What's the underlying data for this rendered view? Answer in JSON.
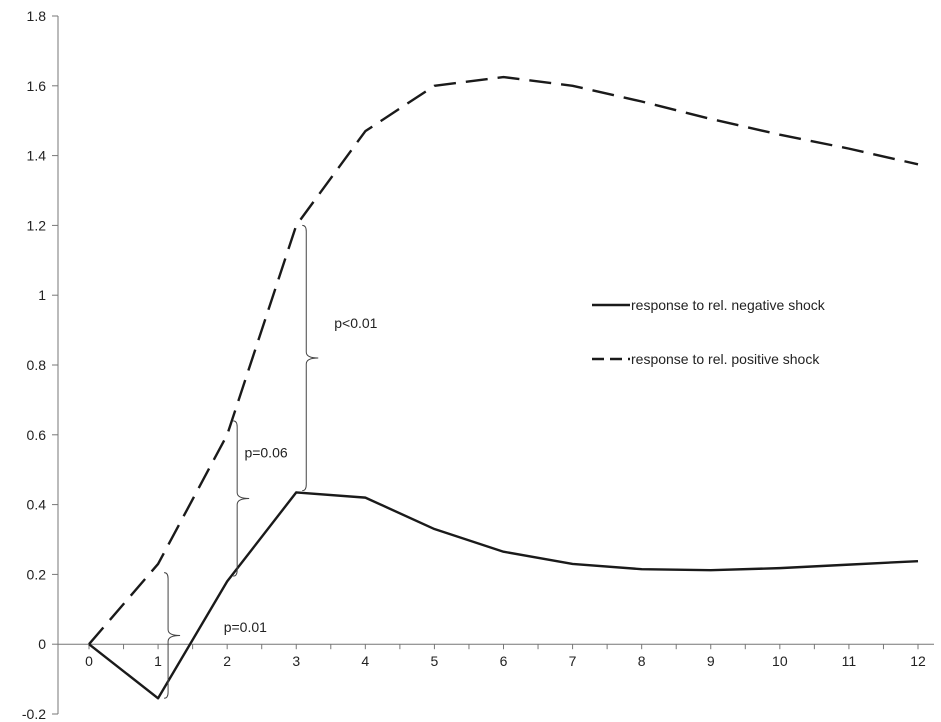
{
  "chart_data": {
    "type": "line",
    "x": [
      0,
      1,
      2,
      3,
      4,
      5,
      6,
      7,
      8,
      9,
      10,
      11,
      12
    ],
    "xticks": [
      "0",
      "1",
      "2",
      "3",
      "4",
      "5",
      "6",
      "7",
      "8",
      "9",
      "10",
      "11",
      "12"
    ],
    "yticks": [
      "-0.2",
      "0",
      "0.2",
      "0.4",
      "0.6",
      "0.8",
      "1",
      "1.2",
      "1.4",
      "1.6",
      "1.8"
    ],
    "ylim": [
      -0.2,
      1.8
    ],
    "xlim": [
      0,
      12
    ],
    "grid": false,
    "legend_position": "right",
    "series": [
      {
        "name": "response to rel. negative shock",
        "style": "solid",
        "color": "#1a1a1a",
        "values": [
          0,
          -0.155,
          0.18,
          0.435,
          0.42,
          0.33,
          0.265,
          0.23,
          0.215,
          0.212,
          0.218,
          0.228,
          0.238
        ]
      },
      {
        "name": "response to rel. positive shock",
        "style": "dashed",
        "color": "#1a1a1a",
        "values": [
          0,
          0.23,
          0.6,
          1.2,
          1.47,
          1.6,
          1.625,
          1.6,
          1.555,
          1.505,
          1.46,
          1.42,
          1.375
        ]
      }
    ],
    "annotations": [
      {
        "text": "p=0.01",
        "x": 1,
        "y_low": -0.155,
        "y_high": 0.205,
        "label_x": 1.95,
        "label_y": 0.05
      },
      {
        "text": "p=0.06",
        "x": 2,
        "y_low": 0.195,
        "y_high": 0.64,
        "label_x": 2.25,
        "label_y": 0.55
      },
      {
        "text": "p<0.01",
        "x": 3,
        "y_low": 0.44,
        "y_high": 1.2,
        "label_x": 3.55,
        "label_y": 0.92
      }
    ]
  }
}
